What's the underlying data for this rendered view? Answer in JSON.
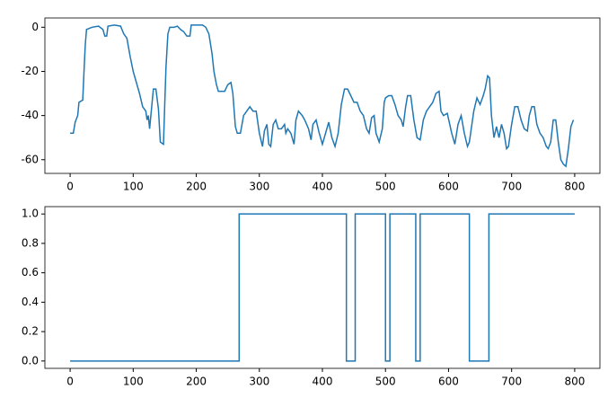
{
  "chart_data": [
    {
      "type": "line",
      "x": [
        0,
        5,
        8,
        12,
        14,
        20,
        22,
        24,
        26,
        35,
        45,
        52,
        55,
        58,
        60,
        70,
        80,
        85,
        90,
        95,
        100,
        105,
        110,
        115,
        120,
        122,
        124,
        126,
        128,
        132,
        136,
        140,
        143,
        148,
        150,
        152,
        155,
        158,
        165,
        170,
        175,
        180,
        185,
        190,
        192,
        200,
        210,
        215,
        220,
        225,
        228,
        232,
        235,
        242,
        245,
        250,
        255,
        258,
        262,
        265,
        270,
        275,
        280,
        285,
        290,
        295,
        300,
        305,
        308,
        312,
        315,
        318,
        322,
        326,
        330,
        335,
        340,
        342,
        345,
        350,
        355,
        358,
        362,
        368,
        372,
        378,
        382,
        385,
        390,
        395,
        400,
        405,
        410,
        415,
        420,
        425,
        430,
        435,
        440,
        445,
        450,
        455,
        460,
        465,
        470,
        474,
        478,
        482,
        485,
        490,
        495,
        498,
        500,
        505,
        510,
        515,
        520,
        525,
        528,
        532,
        535,
        540,
        545,
        550,
        555,
        560,
        565,
        570,
        575,
        580,
        585,
        588,
        592,
        598,
        605,
        610,
        615,
        620,
        625,
        630,
        633,
        637,
        640,
        645,
        650,
        655,
        658,
        662,
        665,
        668,
        672,
        676,
        680,
        684,
        688,
        692,
        695,
        700,
        705,
        710,
        715,
        720,
        725,
        728,
        732,
        736,
        740,
        745,
        750,
        755,
        758,
        762,
        766,
        770,
        774,
        778,
        782,
        786,
        790,
        794,
        798
      ],
      "series": [
        {
          "color": "#1f77b4",
          "values": [
            -48,
            -48,
            -43,
            -40,
            -34,
            -33,
            -20,
            -8,
            -1,
            0,
            0.5,
            -1,
            -4,
            -4,
            0.5,
            1,
            0.5,
            -3,
            -5,
            -13,
            -20,
            -25,
            -30,
            -36,
            -38,
            -42,
            -40,
            -46,
            -40,
            -28,
            -28,
            -37,
            -52,
            -53,
            -35,
            -18,
            -3,
            0,
            0,
            0.5,
            -1,
            -2,
            -4,
            -4,
            1,
            1,
            1,
            0,
            -3,
            -12,
            -20,
            -26,
            -29,
            -29,
            -29,
            -26,
            -25,
            -30,
            -45,
            -48,
            -48,
            -40,
            -38,
            -36,
            -38,
            -38,
            -48,
            -54,
            -47,
            -44,
            -53,
            -54,
            -44,
            -42,
            -46,
            -46,
            -44,
            -48,
            -46,
            -48,
            -53,
            -42,
            -38,
            -40,
            -42,
            -46,
            -51,
            -44,
            -42,
            -48,
            -53,
            -48,
            -43,
            -50,
            -54,
            -48,
            -35,
            -28,
            -28,
            -31,
            -34,
            -34,
            -38,
            -40,
            -46,
            -48,
            -41,
            -40,
            -48,
            -52,
            -46,
            -34,
            -32,
            -31,
            -31,
            -35,
            -40,
            -42,
            -45,
            -36,
            -31,
            -31,
            -42,
            -50,
            -51,
            -42,
            -38,
            -36,
            -34,
            -30,
            -29,
            -38,
            -40,
            -39,
            -48,
            -53,
            -44,
            -40,
            -48,
            -54,
            -52,
            -44,
            -38,
            -32,
            -35,
            -31,
            -28,
            -22,
            -23,
            -40,
            -50,
            -45,
            -50,
            -44,
            -48,
            -55,
            -54,
            -44,
            -36,
            -36,
            -42,
            -46,
            -47,
            -40,
            -36,
            -36,
            -44,
            -48,
            -50,
            -54,
            -55,
            -52,
            -42,
            -42,
            -52,
            -60,
            -62,
            -63,
            -55,
            -45,
            -42
          ]
        }
      ],
      "xlim": [
        -40,
        840
      ],
      "ylim": [
        -66.2,
        4.2
      ],
      "xticks": [
        0,
        100,
        200,
        300,
        400,
        500,
        600,
        700,
        800
      ],
      "yticks": [
        -60,
        -40,
        -20,
        0
      ]
    },
    {
      "type": "line",
      "x": [
        0,
        268,
        268,
        438,
        438,
        452,
        452,
        500,
        500,
        507,
        507,
        548,
        548,
        555,
        555,
        633,
        633,
        664,
        664,
        800
      ],
      "series": [
        {
          "color": "#1f77b4",
          "values": [
            0,
            0,
            1,
            1,
            0,
            0,
            1,
            1,
            0,
            0,
            1,
            1,
            0,
            0,
            1,
            1,
            0,
            0,
            1,
            1
          ]
        }
      ],
      "xlim": [
        -40,
        840
      ],
      "ylim": [
        -0.05,
        1.05
      ],
      "xticks": [
        0,
        100,
        200,
        300,
        400,
        500,
        600,
        700,
        800
      ],
      "yticks": [
        {
          "value": 0,
          "label": "0.0"
        },
        {
          "value": 0.2,
          "label": "0.2"
        },
        {
          "value": 0.4,
          "label": "0.4"
        },
        {
          "value": 0.6,
          "label": "0.6"
        },
        {
          "value": 0.8,
          "label": "0.8"
        },
        {
          "value": 1,
          "label": "1.0"
        }
      ]
    }
  ]
}
